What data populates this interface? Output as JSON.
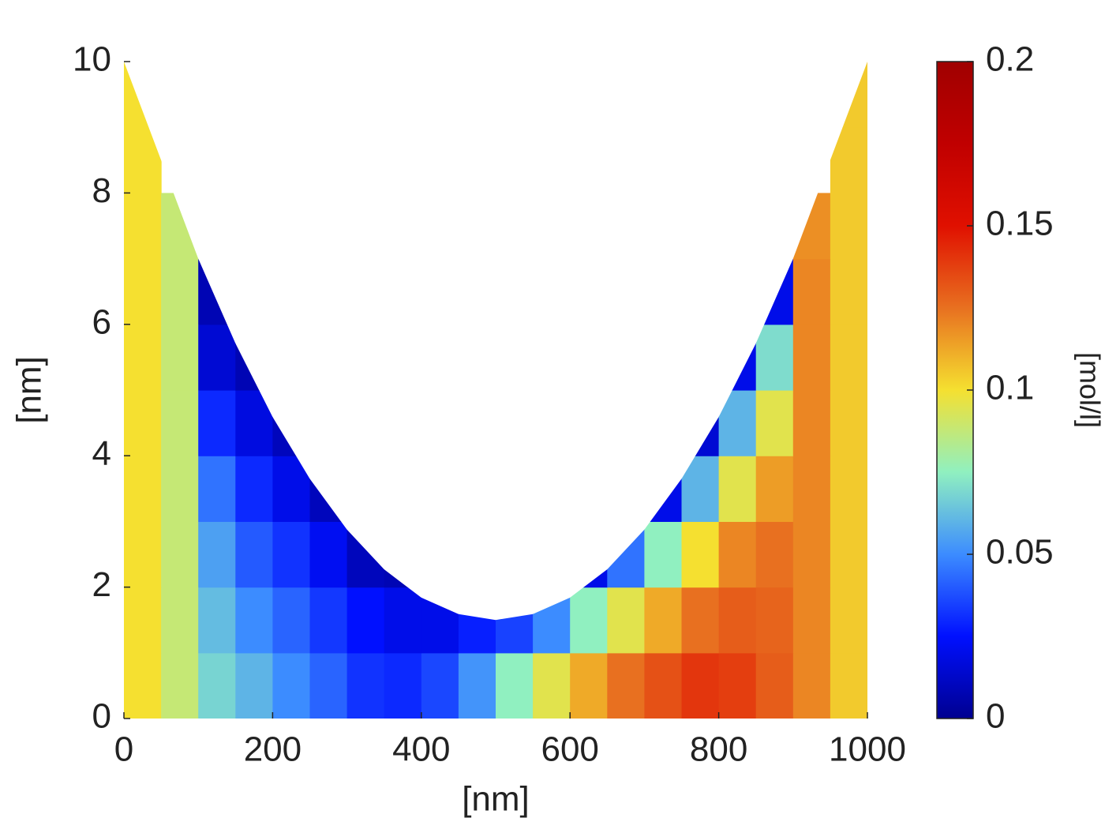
{
  "chart_data": {
    "type": "contour",
    "xlabel": "[nm]",
    "ylabel": "[nm]",
    "colorbar_label": "[mol/l]",
    "x": [
      25,
      75,
      125,
      175,
      225,
      275,
      325,
      375,
      425,
      475,
      525,
      575,
      625,
      675,
      725,
      775,
      825,
      875,
      925,
      975
    ],
    "y": [
      0.5,
      1.5,
      2.5,
      3.5,
      4.5,
      5.5,
      6.5,
      7.5,
      8.5,
      9.5
    ],
    "z": [
      [
        0.1,
        0.088,
        0.068,
        0.06,
        0.05,
        0.042,
        0.032,
        0.03,
        0.036,
        0.052,
        0.075,
        0.095,
        0.112,
        0.125,
        0.133,
        0.14,
        0.138,
        0.13,
        0.12,
        0.105
      ],
      [
        0.1,
        0.088,
        0.062,
        0.05,
        0.042,
        0.033,
        0.025,
        0.02,
        0.02,
        0.028,
        0.035,
        0.05,
        0.075,
        0.095,
        0.112,
        0.125,
        0.13,
        0.128,
        0.12,
        0.105
      ],
      [
        0.1,
        0.088,
        0.055,
        0.04,
        0.032,
        0.022,
        0.01,
        0.008,
        null,
        null,
        null,
        null,
        0.02,
        0.045,
        0.075,
        0.1,
        0.12,
        0.125,
        0.12,
        0.105
      ],
      [
        0.1,
        0.088,
        0.045,
        0.03,
        0.02,
        0.01,
        null,
        null,
        null,
        null,
        null,
        null,
        null,
        null,
        0.02,
        0.06,
        0.095,
        0.115,
        0.12,
        0.105
      ],
      [
        0.1,
        0.088,
        0.03,
        0.018,
        0.01,
        null,
        null,
        null,
        null,
        null,
        null,
        null,
        null,
        null,
        null,
        0.015,
        0.06,
        0.095,
        0.12,
        0.105
      ],
      [
        0.1,
        0.088,
        0.015,
        0.008,
        null,
        null,
        null,
        null,
        null,
        null,
        null,
        null,
        null,
        null,
        null,
        null,
        0.02,
        0.07,
        0.12,
        0.105
      ],
      [
        0.1,
        0.088,
        0.008,
        null,
        null,
        null,
        null,
        null,
        null,
        null,
        null,
        null,
        null,
        null,
        null,
        null,
        null,
        0.02,
        0.12,
        0.105
      ],
      [
        0.1,
        0.088,
        null,
        null,
        null,
        null,
        null,
        null,
        null,
        null,
        null,
        null,
        null,
        null,
        null,
        null,
        null,
        null,
        0.118,
        0.105
      ],
      [
        0.1,
        null,
        null,
        null,
        null,
        null,
        null,
        null,
        null,
        null,
        null,
        null,
        null,
        null,
        null,
        null,
        null,
        null,
        null,
        0.105
      ],
      [
        0.1,
        null,
        null,
        null,
        null,
        null,
        null,
        null,
        null,
        null,
        null,
        null,
        null,
        null,
        null,
        null,
        null,
        null,
        null,
        0.105
      ]
    ],
    "boundary_x": [
      0,
      100,
      150,
      200,
      250,
      300,
      350,
      400,
      450,
      500,
      550,
      600,
      650,
      700,
      750,
      800,
      850,
      900,
      1000,
      1000,
      0
    ],
    "boundary_y": [
      10,
      7,
      5.71,
      4.59,
      3.65,
      2.875,
      2.27,
      1.84,
      1.59,
      1.5,
      1.59,
      1.84,
      2.27,
      2.875,
      3.65,
      4.59,
      5.71,
      7,
      10,
      0,
      0
    ],
    "xlim": [
      0,
      1000
    ],
    "ylim": [
      0,
      10
    ],
    "xticks": [
      0,
      200,
      400,
      600,
      800,
      1000
    ],
    "yticks": [
      0,
      2,
      4,
      6,
      8,
      10
    ],
    "clim": [
      0,
      0.2
    ],
    "cticks": [
      0,
      0.05,
      0.1,
      0.15,
      0.2
    ],
    "colormap": [
      "#000090",
      "#0010ff",
      "#3c8cff",
      "#90f0c0",
      "#f5e030",
      "#e87020",
      "#e01000",
      "#c00000",
      "#a00000"
    ]
  }
}
